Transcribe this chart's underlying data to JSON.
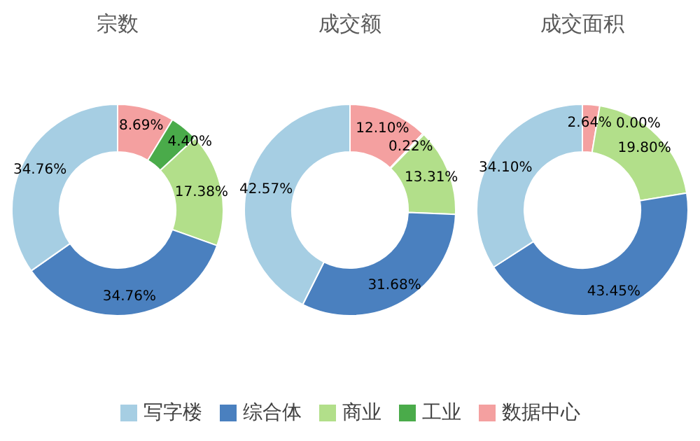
{
  "chart_data": [
    {
      "type": "donut",
      "title": "宗数",
      "categories": [
        "写字楼",
        "综合体",
        "商业",
        "工业",
        "数据中心"
      ],
      "values": [
        34.76,
        34.76,
        17.38,
        4.4,
        8.69
      ],
      "colors": [
        "#a6cee3",
        "#4a80bf",
        "#b2df8a",
        "#4aab4a",
        "#f4a0a0"
      ],
      "value_labels": [
        "34.76%",
        "34.76%",
        "17.38%",
        "4.40%",
        "8.69%"
      ],
      "legend": "bottom"
    },
    {
      "type": "donut",
      "title": "成交额",
      "categories": [
        null,
        null,
        null,
        null,
        null
      ],
      "values": [
        42.57,
        31.68,
        13.31,
        0.22,
        12.1
      ],
      "colors": [
        "#a6cee3",
        "#4a80bf",
        "#b2df8a",
        "#4aab4a",
        "#f4a0a0"
      ],
      "value_labels": [
        "42.57%",
        "31.68%",
        "13.31%",
        "0.22%",
        "12.10%"
      ]
    },
    {
      "type": "donut",
      "title": "成交面积",
      "categories": [
        null,
        null,
        null,
        null,
        null
      ],
      "values": [
        34.1,
        43.45,
        19.8,
        0.0,
        2.64
      ],
      "colors": [
        "#a6cee3",
        "#4a80bf",
        "#b2df8a",
        "#4aab4a",
        "#f4a0a0"
      ],
      "value_labels": [
        "34.10%",
        "43.45%",
        "19.80%",
        "0.00%",
        "2.64%"
      ]
    }
  ]
}
